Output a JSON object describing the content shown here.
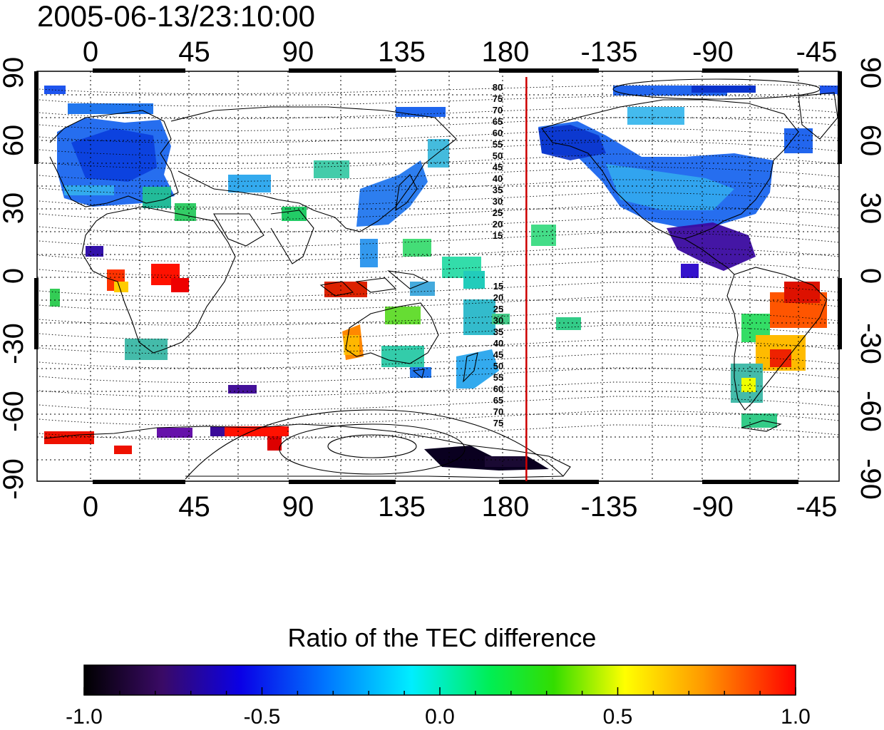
{
  "header": {
    "timestamp": "2005-06-13/23:10:00"
  },
  "map": {
    "x_ticks": [
      "0",
      "45",
      "90",
      "135",
      "180",
      "-135",
      "-90",
      "-45"
    ],
    "x_tick_lons": [
      0,
      45,
      90,
      135,
      180,
      225,
      270,
      315
    ],
    "y_ticks": [
      "90",
      "60",
      "30",
      "0",
      "-30",
      "-60",
      "-90"
    ],
    "y_tick_lats": [
      90,
      60,
      30,
      0,
      -30,
      -60,
      -90
    ],
    "contour_labels_north": [
      "80",
      "75",
      "70",
      "65",
      "60",
      "55",
      "50",
      "45",
      "40",
      "35",
      "30",
      "25",
      "20",
      "15"
    ],
    "contour_labels_south": [
      "15",
      "20",
      "25",
      "30",
      "35",
      "40",
      "45",
      "50",
      "55",
      "60",
      "65",
      "70",
      "75"
    ],
    "terminator_line": {
      "longitude": 190,
      "color": "#cc0000"
    }
  },
  "colorbar": {
    "title": "Ratio of the TEC difference",
    "tick_labels": [
      "-1.0",
      "-0.5",
      "0.0",
      "0.5",
      "1.0"
    ],
    "tick_values": [
      -1.0,
      -0.5,
      0.0,
      0.5,
      1.0
    ],
    "range": [
      -1.0,
      1.0
    ],
    "colors": [
      "#000000",
      "#3a0a66",
      "#0a00e6",
      "#0077ff",
      "#00eeff",
      "#00ee55",
      "#33dd00",
      "#ffff00",
      "#ff9900",
      "#ff0000"
    ]
  }
}
